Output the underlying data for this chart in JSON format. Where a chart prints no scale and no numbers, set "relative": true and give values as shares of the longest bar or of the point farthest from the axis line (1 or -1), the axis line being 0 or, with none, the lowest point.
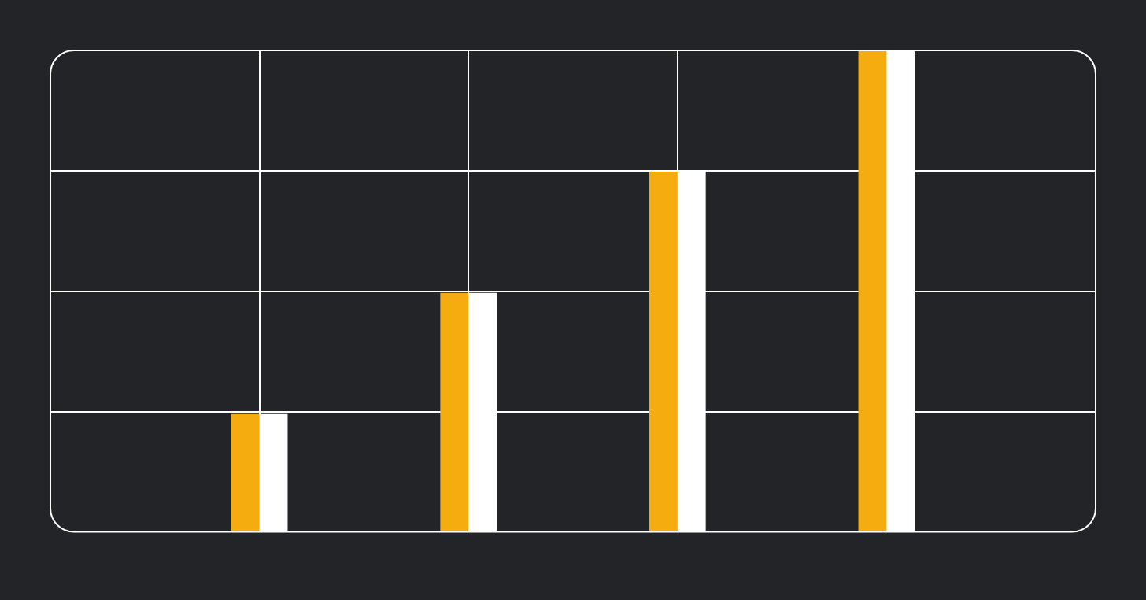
{
  "chart_data": {
    "type": "bar",
    "relative": true,
    "categories": [
      null,
      null,
      null,
      null
    ],
    "series": [
      {
        "color": "#f4ac0e",
        "values": [
          0.245,
          0.497,
          0.748,
          1
        ]
      },
      {
        "color": "#ffffff",
        "values": [
          0.245,
          0.497,
          0.748,
          1
        ]
      }
    ],
    "grid": true,
    "legend": false
  }
}
